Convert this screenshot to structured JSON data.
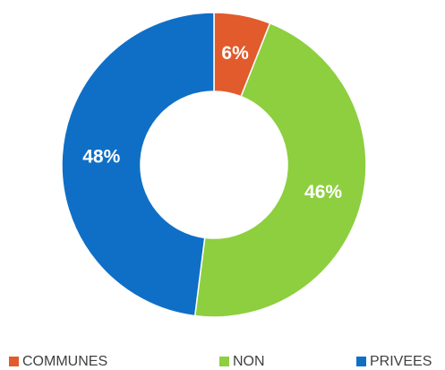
{
  "chart_data": {
    "type": "donut",
    "categories": [
      "COMMUNES",
      "NON",
      "PRIVEES"
    ],
    "values": [
      6,
      46,
      48
    ],
    "value_labels": [
      "6%",
      "46%",
      "48%"
    ],
    "colors": [
      "#e15b2c",
      "#8dcf3f",
      "#0f6fc6"
    ]
  }
}
